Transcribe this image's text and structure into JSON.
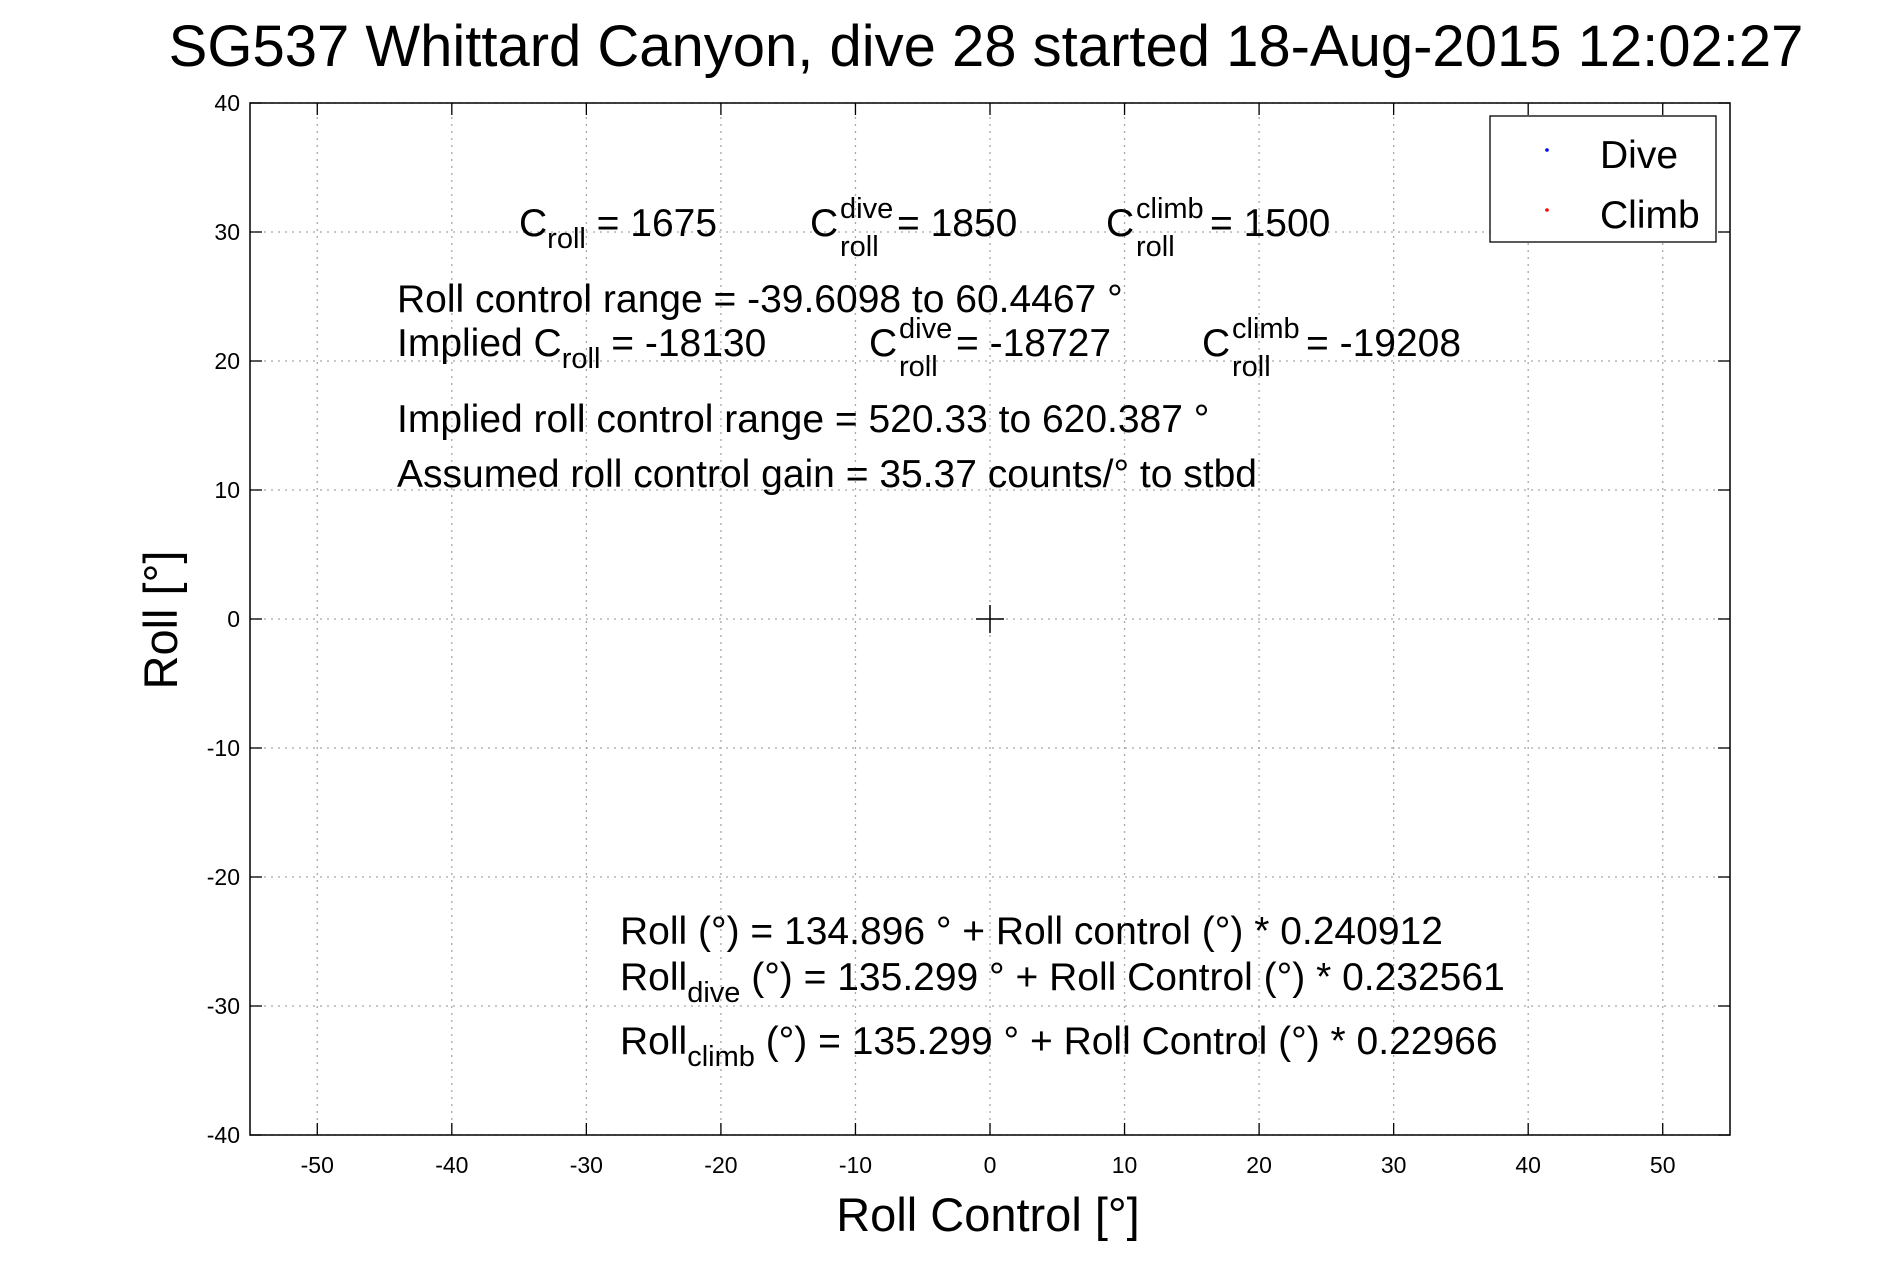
{
  "chart_data": {
    "type": "scatter",
    "title": "SG537 Whittard Canyon, dive 28 started 18-Aug-2015 12:02:27",
    "xlabel": "Roll Control [°]",
    "ylabel": "Roll [°]",
    "xlim": [
      -55,
      55
    ],
    "ylim": [
      -40,
      40
    ],
    "x_ticks": [
      -50,
      -40,
      -30,
      -20,
      -10,
      0,
      10,
      20,
      30,
      40,
      50
    ],
    "y_ticks": [
      -40,
      -30,
      -20,
      -10,
      0,
      10,
      20,
      30,
      40
    ],
    "x_tick_labels": [
      "-50",
      "-40",
      "-30",
      "-20",
      "-10",
      "0",
      "10",
      "20",
      "30",
      "40",
      "50"
    ],
    "y_tick_labels": [
      "-40",
      "-30",
      "-20",
      "-10",
      "0",
      "10",
      "20",
      "30",
      "40"
    ],
    "grid": true,
    "legend_position": "top-right",
    "center_marker": {
      "x": 0,
      "y": 0,
      "symbol": "+"
    },
    "series": [
      {
        "name": "Dive",
        "color": "#0000ff",
        "points": []
      },
      {
        "name": "Climb",
        "color": "#ff0000",
        "points": []
      }
    ],
    "annotations": {
      "c_roll": {
        "base": "C",
        "sub": "roll",
        "value": " = 1675"
      },
      "c_roll_dive": {
        "base": "C",
        "sup": "dive",
        "sub": "roll",
        "value": " = 1850"
      },
      "c_roll_climb": {
        "base": "C",
        "sup": "climb",
        "sub": "roll",
        "value": " = 1500"
      },
      "range_line": "Roll control range = -39.6098 to 60.4467 °",
      "implied_prefix": "Implied C",
      "implied_sub": "roll",
      "implied_value": " = -18130",
      "implied_dive": {
        "base": "C",
        "sup": "dive",
        "sub": "roll",
        "value": " = -18727"
      },
      "implied_climb": {
        "base": "C",
        "sup": "climb",
        "sub": "roll",
        "value": " = -19208"
      },
      "implied_range_line": "Implied roll control range = 520.33 to 620.387 °",
      "gain_line": "Assumed roll control gain = 35.37 counts/° to stbd",
      "fit_all": "Roll (°) = 134.896 ° + Roll control (°) * 0.240912",
      "fit_dive_base": "Roll",
      "fit_dive_sub": "dive",
      "fit_dive_rest": " (°) = 135.299 ° + Roll Control (°) * 0.232561",
      "fit_climb_base": "Roll",
      "fit_climb_sub": "climb",
      "fit_climb_rest": " (°) = 135.299 ° + Roll Control (°) * 0.22966"
    }
  }
}
